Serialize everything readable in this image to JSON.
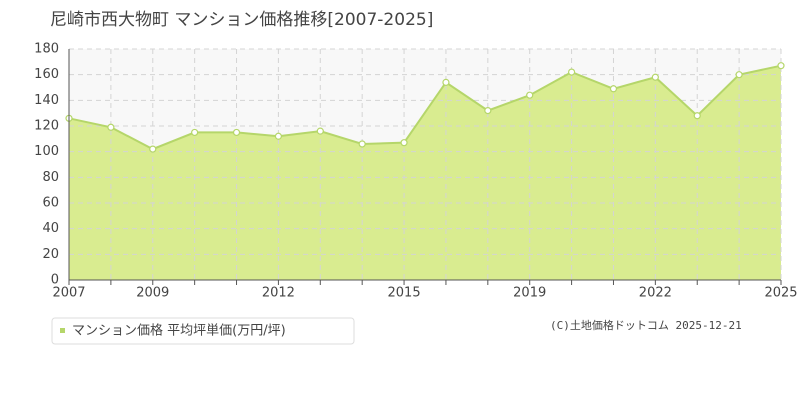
{
  "chart_data": {
    "type": "area",
    "title": "尼崎市西大物町 マンション価格推移[2007-2025]",
    "categories": [
      "2007",
      null,
      "2009",
      null,
      null,
      "2012",
      null,
      null,
      "2015",
      null,
      null,
      "2019",
      null,
      null,
      "2022",
      null,
      null,
      "2025"
    ],
    "series": [
      {
        "name": "マンション価格 平均坪単価(万円/坪)",
        "color": "#b5d66a",
        "fill": "#d9ec90",
        "values": [
          126,
          119,
          102,
          115,
          115,
          112,
          116,
          106,
          107,
          154,
          132,
          144,
          162,
          149,
          158,
          128,
          160,
          167
        ]
      }
    ],
    "ylim": [
      0,
      180
    ],
    "yticks": [
      0,
      20,
      40,
      60,
      80,
      100,
      120,
      140,
      160,
      180
    ],
    "grid": true,
    "legend": "bottom-left",
    "copyright": "(C)土地価格ドットコム 2025-12-21"
  }
}
